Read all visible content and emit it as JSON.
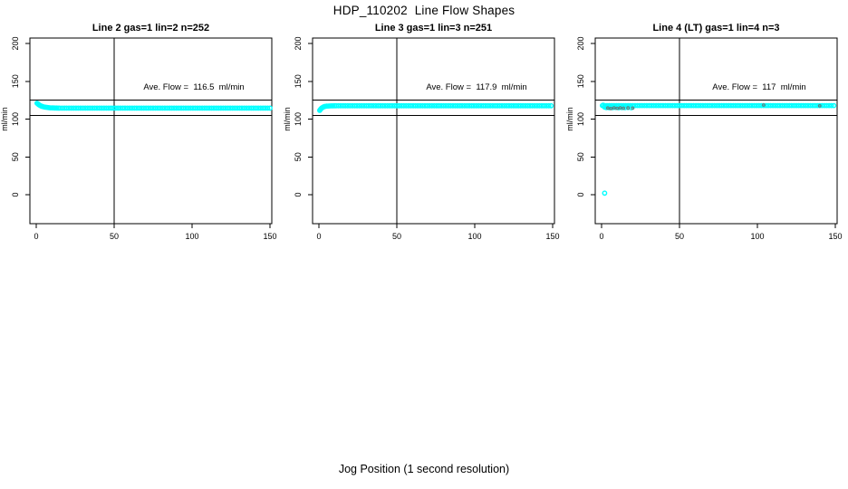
{
  "figure": {
    "title": "HDP_110202  Line Flow Shapes",
    "xlabel": "Jog Position (1 second resolution)",
    "background_color": "#ffffff",
    "text_color": "#000000"
  },
  "chart_data": [
    {
      "type": "scatter",
      "title": "Line 2 gas=1 lin=2 n=252",
      "line": 2,
      "gas": 1,
      "lin": 2,
      "n": 252,
      "ave_flow": 116.5,
      "ave_flow_text": "Ave. Flow =  116.5  ml/min",
      "ylabel": "ml/min",
      "xlim": [
        0,
        150
      ],
      "ylim": [
        0,
        200
      ],
      "x_ticks": [
        0,
        50,
        100,
        150
      ],
      "y_ticks": [
        0,
        50,
        100,
        150,
        200
      ],
      "marker": {
        "shape": "open-circle",
        "color": "#00ffff"
      },
      "ref_lines": {
        "horizontal": [
          105,
          125
        ],
        "vertical": [
          50
        ]
      },
      "series": [
        {
          "name": "flow",
          "color": "#00ffff",
          "points": [
            [
              0.5,
              121
            ],
            [
              1,
              120.2
            ],
            [
              1.5,
              119.3
            ],
            [
              2,
              118.6
            ],
            [
              2.5,
              118
            ],
            [
              3,
              117.4
            ],
            [
              3.5,
              117
            ],
            [
              4,
              116.6
            ],
            [
              5,
              116.1
            ],
            [
              6,
              115.7
            ],
            [
              7,
              115.4
            ],
            [
              8,
              115.1
            ],
            [
              9,
              114.9
            ],
            [
              10,
              114.8
            ],
            [
              11,
              114.7
            ],
            [
              12,
              114.6
            ],
            [
              13,
              114.6
            ],
            [
              14,
              114.5
            ]
          ],
          "runs": [
            {
              "x0": 15,
              "x1": 150,
              "step": 1.5,
              "y": 114.5
            }
          ]
        }
      ]
    },
    {
      "type": "scatter",
      "title": "Line 3 gas=1 lin=3 n=251",
      "line": 3,
      "gas": 1,
      "lin": 3,
      "n": 251,
      "ave_flow": 117.9,
      "ave_flow_text": "Ave. Flow =  117.9  ml/min",
      "ylabel": "ml/min",
      "xlim": [
        0,
        150
      ],
      "ylim": [
        0,
        200
      ],
      "x_ticks": [
        0,
        50,
        100,
        150
      ],
      "y_ticks": [
        0,
        50,
        100,
        150,
        200
      ],
      "marker": {
        "shape": "open-circle",
        "color": "#00ffff"
      },
      "ref_lines": {
        "horizontal": [
          105,
          125
        ],
        "vertical": [
          50
        ]
      },
      "series": [
        {
          "name": "flow",
          "color": "#00ffff",
          "points": [
            [
              0.5,
              111.5
            ],
            [
              1,
              112.8
            ],
            [
              1.5,
              114
            ],
            [
              2,
              114.9
            ],
            [
              2.5,
              115.6
            ],
            [
              3,
              116.1
            ],
            [
              3.5,
              116.5
            ],
            [
              4,
              116.8
            ],
            [
              5,
              117.1
            ],
            [
              6,
              117.3
            ],
            [
              7,
              117.4
            ],
            [
              8,
              117.5
            ],
            [
              9,
              117.5
            ],
            [
              10,
              117.6
            ]
          ],
          "runs": [
            {
              "x0": 11,
              "x1": 150,
              "step": 1.5,
              "y": 117.6
            }
          ]
        }
      ]
    },
    {
      "type": "scatter",
      "title": "Line 4 (LT) gas=1 lin=4 n=3",
      "line": 4,
      "line_note": "LT",
      "gas": 1,
      "lin": 4,
      "n": 3,
      "ave_flow": 117,
      "ave_flow_text": "Ave. Flow =  117  ml/min",
      "ylabel": "ml/min",
      "xlim": [
        0,
        150
      ],
      "ylim": [
        0,
        200
      ],
      "x_ticks": [
        0,
        50,
        100,
        150
      ],
      "y_ticks": [
        0,
        50,
        100,
        150,
        200
      ],
      "marker": {
        "shape": "open-circle",
        "color": "#00ffff"
      },
      "ref_lines": {
        "horizontal": [
          105,
          125
        ],
        "vertical": [
          50
        ]
      },
      "series": [
        {
          "name": "flow",
          "color": "#00ffff",
          "points": [
            [
              2,
              2
            ],
            [
              1,
              118.3
            ],
            [
              2,
              115.8
            ],
            [
              3,
              115.2
            ],
            [
              4,
              115.6
            ],
            [
              5,
              115
            ],
            [
              6,
              115.4
            ],
            [
              7,
              115.1
            ],
            [
              9,
              115.3
            ],
            [
              11,
              115
            ],
            [
              13,
              115.2
            ],
            [
              15,
              115.1
            ],
            [
              17,
              115.3
            ],
            [
              19,
              115
            ]
          ],
          "runs": [
            {
              "x0": 0.5,
              "x1": 150,
              "step": 1.5,
              "y": 117.8
            }
          ]
        },
        {
          "name": "flow-overlap-dark",
          "color": "#5f8080",
          "r": 1.3,
          "stroke_width": 1.2,
          "points": [
            [
              4,
              114.6
            ],
            [
              6,
              113.9
            ],
            [
              8,
              114.8
            ],
            [
              10,
              114.2
            ],
            [
              12,
              114.9
            ],
            [
              14,
              114.4
            ],
            [
              17,
              114.7
            ],
            [
              20,
              114.5
            ],
            [
              104,
              118.6
            ],
            [
              140,
              117.5
            ]
          ],
          "runs": []
        }
      ]
    }
  ]
}
